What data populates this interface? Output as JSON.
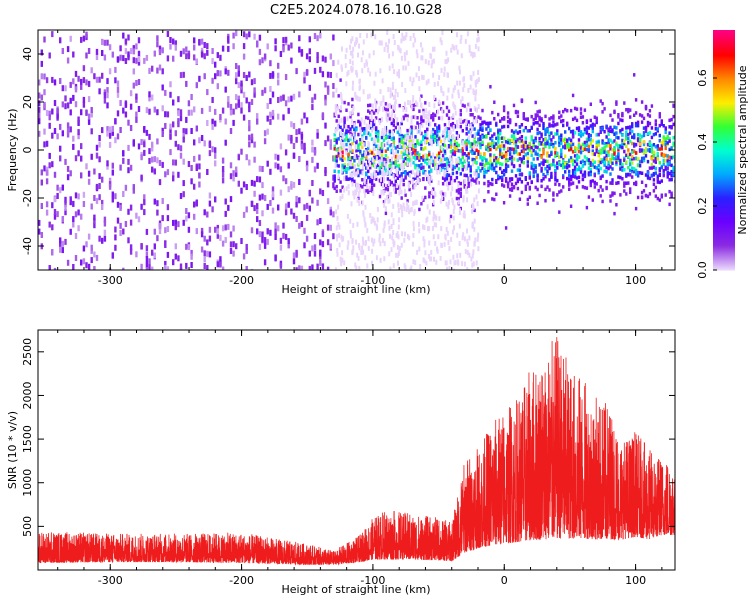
{
  "title": "C2E5.2024.078.16.10.G28",
  "colors": {
    "snr_line": "#ee1c1c",
    "spectrogram_palette": [
      "#e9d5fb",
      "#8a2be2",
      "#6a00ff",
      "#2a20ff",
      "#00aaff",
      "#00ffd0",
      "#33ff33",
      "#ffee00",
      "#ff8800",
      "#ff0000",
      "#ff0080"
    ]
  },
  "chart_data": [
    {
      "type": "heatmap",
      "name": "spectrogram",
      "xlabel": "Height of straight line (km)",
      "ylabel": "Frequency (Hz)",
      "xlim": [
        -355,
        130
      ],
      "ylim": [
        -50,
        50
      ],
      "xticks": [
        -300,
        -200,
        -100,
        0,
        100
      ],
      "yticks": [
        -40,
        -20,
        0,
        20,
        40
      ],
      "colorbar": {
        "label": "Normalized spectral amplitude",
        "range": [
          0.0,
          0.75
        ],
        "ticks": [
          0.0,
          0.2,
          0.4,
          0.6
        ]
      },
      "regions": [
        {
          "x_range": [
            -355,
            -130
          ],
          "freq_spread": [
            -50,
            50
          ],
          "amplitude": [
            0.02,
            0.12
          ]
        },
        {
          "x_range": [
            -130,
            130
          ],
          "freq_spread": [
            -15,
            15
          ],
          "amplitude": [
            0.1,
            0.75
          ]
        }
      ]
    },
    {
      "type": "line",
      "name": "snr",
      "xlabel": "Height of straight line (km)",
      "ylabel": "SNR (10 * v/v)",
      "xlim": [
        -355,
        130
      ],
      "ylim": [
        0,
        2750
      ],
      "xticks": [
        -300,
        -200,
        -100,
        0,
        100
      ],
      "yticks": [
        500,
        1000,
        1500,
        2000,
        2500
      ],
      "envelope": {
        "x": [
          -355,
          -300,
          -250,
          -200,
          -150,
          -130,
          -110,
          -100,
          -90,
          -70,
          -50,
          -40,
          -35,
          -30,
          -20,
          -10,
          0,
          10,
          20,
          30,
          40,
          50,
          60,
          70,
          80,
          90,
          100,
          110,
          120,
          130
        ],
        "low": [
          80,
          90,
          90,
          80,
          60,
          60,
          90,
          120,
          120,
          120,
          110,
          100,
          150,
          200,
          250,
          280,
          300,
          320,
          340,
          350,
          360,
          360,
          360,
          350,
          350,
          350,
          380,
          350,
          400,
          400
        ],
        "high": [
          450,
          420,
          420,
          430,
          300,
          220,
          400,
          600,
          700,
          650,
          600,
          550,
          900,
          1300,
          1400,
          1700,
          1850,
          2000,
          2300,
          2500,
          2700,
          2350,
          2200,
          2000,
          1900,
          1500,
          1600,
          1400,
          1300,
          1300
        ]
      }
    }
  ]
}
